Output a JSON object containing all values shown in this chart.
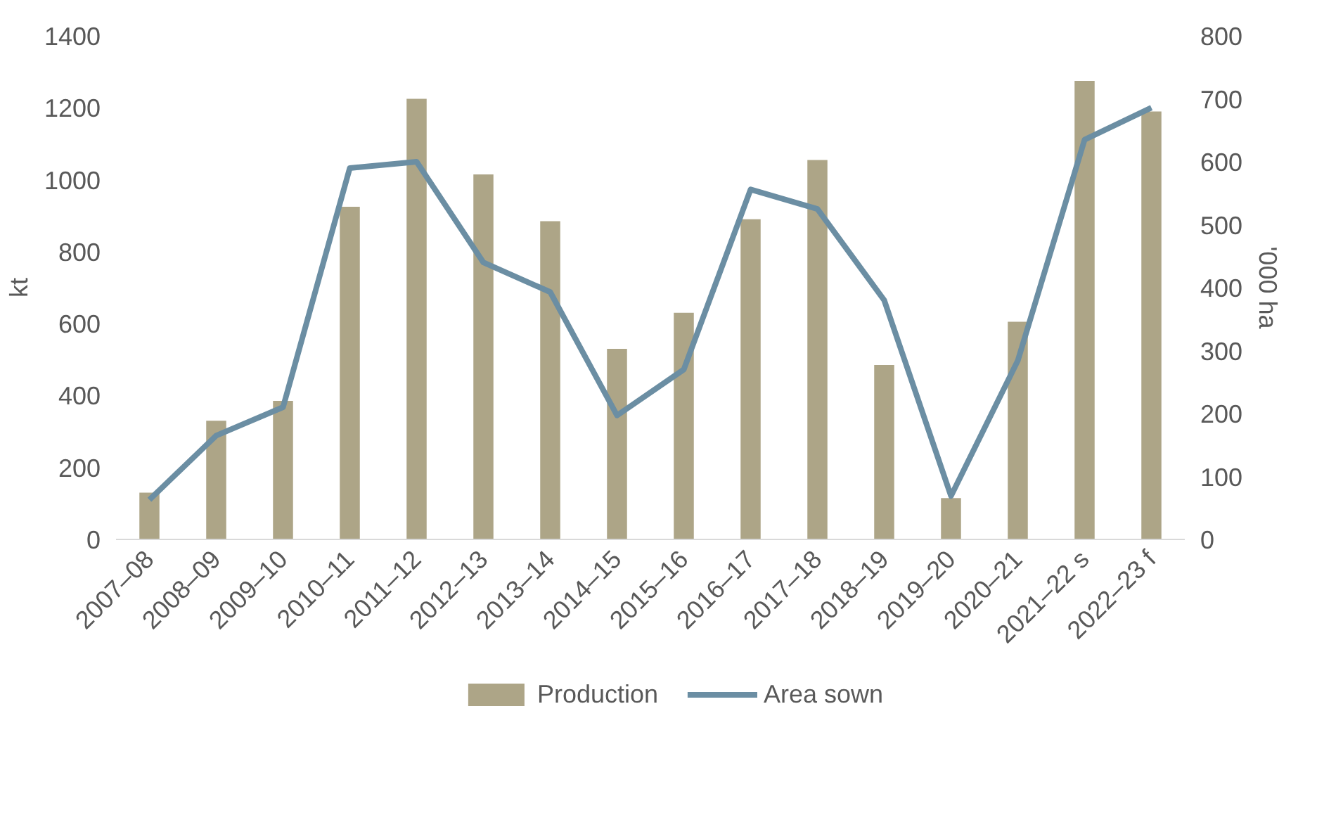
{
  "chart_data": {
    "type": "bar",
    "ylabel": "kt",
    "y2label": "'000 ha",
    "categories": [
      "2007–08",
      "2008–09",
      "2009–10",
      "2010–11",
      "2011–12",
      "2012–13",
      "2013–14",
      "2014–15",
      "2015–16",
      "2016–17",
      "2017–18",
      "2018–19",
      "2019–20",
      "2020–21",
      "2021–22 s",
      "2022–23 f"
    ],
    "series": [
      {
        "name": "Production",
        "color": "#ada587",
        "values": [
          130,
          330,
          385,
          925,
          1225,
          1015,
          885,
          530,
          630,
          890,
          1055,
          485,
          115,
          605,
          1275,
          1190
        ]
      },
      {
        "name": "Area sown",
        "type": "line",
        "axis": "y2",
        "color": "#6b8ea3",
        "values": [
          63,
          165,
          210,
          590,
          600,
          440,
          393,
          197,
          270,
          556,
          525,
          380,
          69,
          284,
          635,
          686
        ]
      }
    ],
    "ylim": [
      0,
      1400
    ],
    "yticks": [
      0,
      200,
      400,
      600,
      800,
      1000,
      1200,
      1400
    ],
    "y2lim": [
      0,
      800
    ],
    "y2ticks": [
      0,
      100,
      200,
      300,
      400,
      500,
      600,
      700,
      800
    ],
    "grid": false,
    "legend": "bottom",
    "line_style": "solid",
    "marker": "none"
  }
}
